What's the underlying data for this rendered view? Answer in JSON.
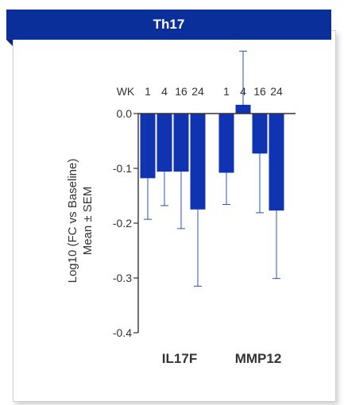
{
  "panel": {
    "title": "Th17"
  },
  "colors": {
    "banner": "#0b2f9a",
    "bar": "#1033b2",
    "error": "#2a4fc0",
    "axis": "#333333"
  },
  "chart_data": {
    "type": "bar",
    "title": "Th17",
    "ylabel_line1": "Log10 (FC vs Baseline)",
    "ylabel_line2": "Mean ± SEM",
    "week_label": "WK",
    "weeks": [
      "1",
      "4",
      "16",
      "24"
    ],
    "ylim": [
      -0.4,
      0.0
    ],
    "yticks": [
      0.0,
      -0.1,
      -0.2,
      -0.3,
      -0.4
    ],
    "ytick_labels": [
      "0.0",
      "-0.1",
      "-0.2",
      "-0.3",
      "-0.4"
    ],
    "grid": false,
    "groups": [
      {
        "name": "IL17F",
        "values": [
          -0.118,
          -0.106,
          -0.106,
          -0.175
        ],
        "errors": [
          0.075,
          0.062,
          0.104,
          0.14
        ]
      },
      {
        "name": "MMP12",
        "values": [
          -0.108,
          0.016,
          -0.073,
          -0.177
        ],
        "errors": [
          0.058,
          0.098,
          0.108,
          0.124
        ]
      }
    ]
  }
}
